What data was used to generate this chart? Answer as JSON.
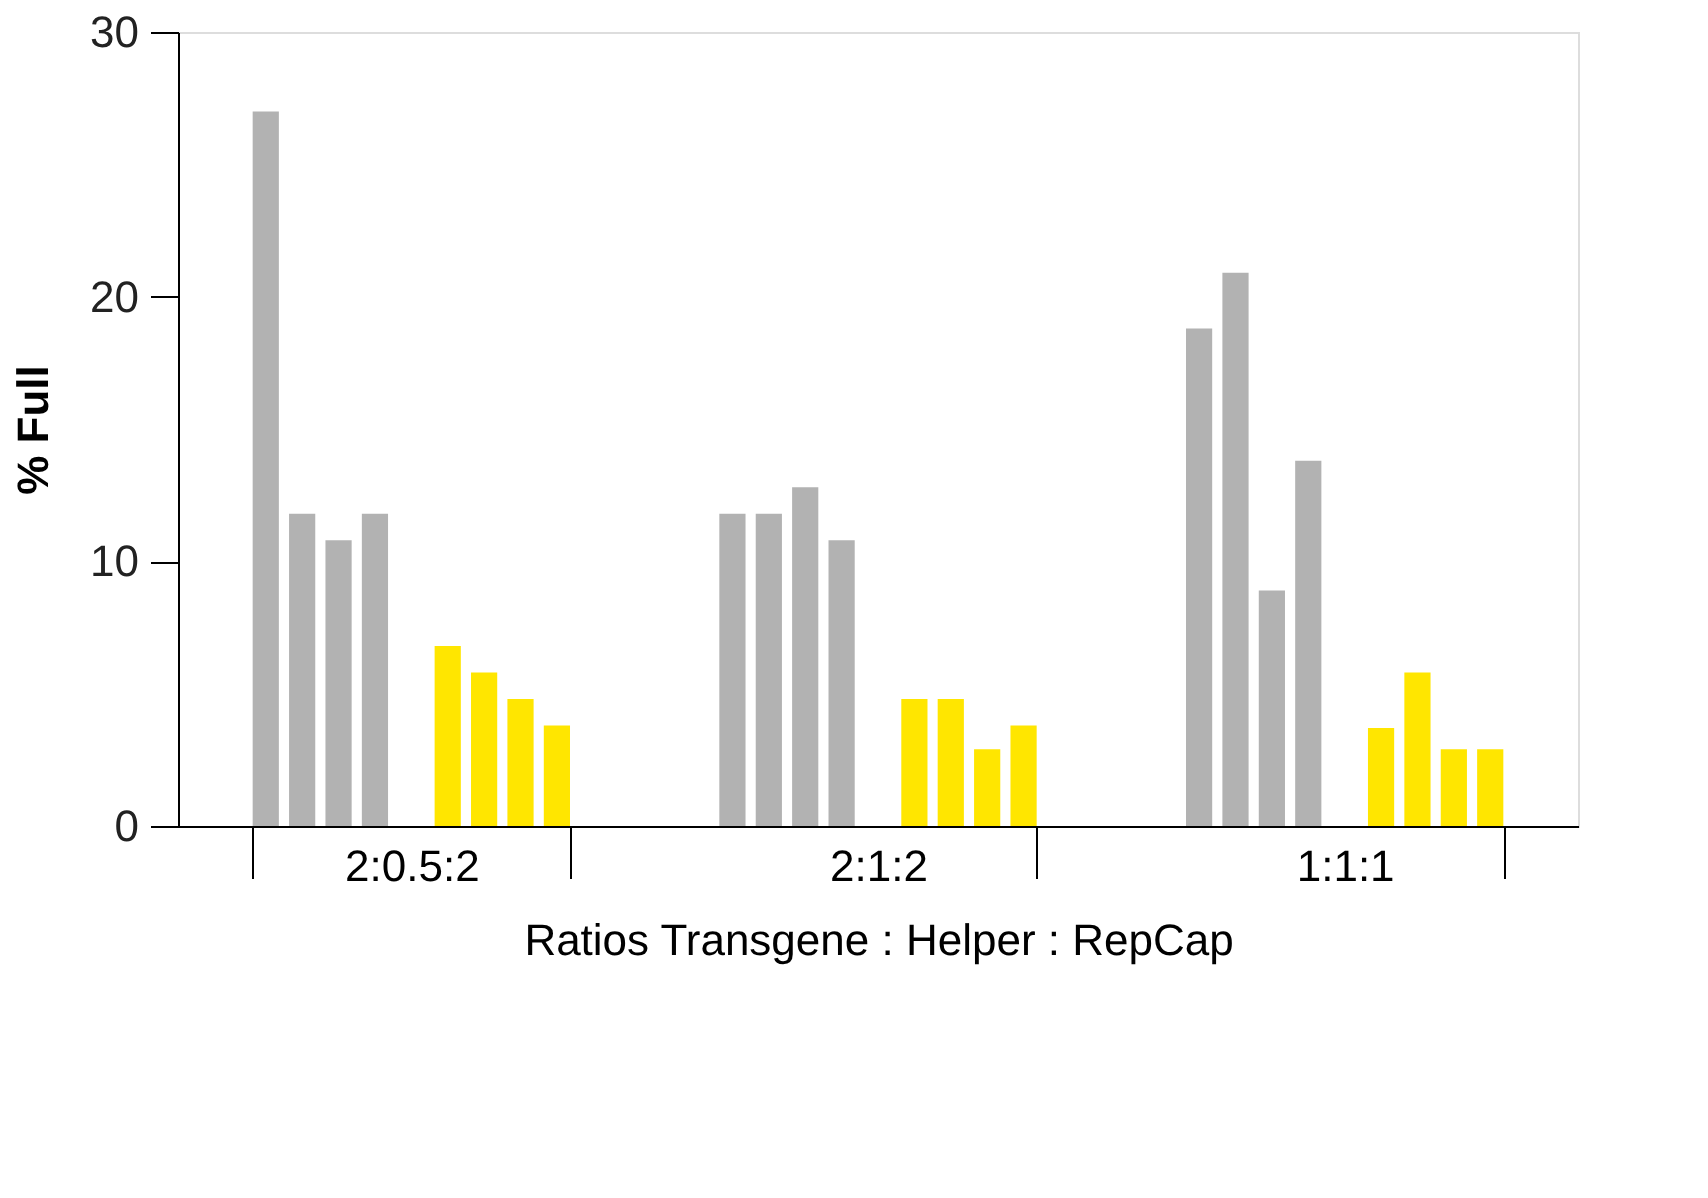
{
  "chart_data": {
    "type": "bar",
    "xlabel": "Ratios Transgene : Helper : RepCap",
    "ylabel": "% Full",
    "categories": [
      "2:0.5:2",
      "2:1:2",
      "1:1:1"
    ],
    "series": [
      {
        "color": "#b2b2b2",
        "values": [
          27,
          11.8,
          18.8
        ]
      },
      {
        "color": "#b2b2b2",
        "values": [
          11.8,
          11.8,
          20.9
        ]
      },
      {
        "color": "#b2b2b2",
        "values": [
          10.8,
          12.8,
          8.9
        ]
      },
      {
        "color": "#b2b2b2",
        "values": [
          11.8,
          10.8,
          13.8
        ]
      },
      {
        "color": "#ffe600",
        "values": [
          6.8,
          4.8,
          3.7
        ]
      },
      {
        "color": "#ffe600",
        "values": [
          5.8,
          4.8,
          5.8
        ]
      },
      {
        "color": "#ffe600",
        "values": [
          4.8,
          2.9,
          2.9
        ]
      },
      {
        "color": "#ffe600",
        "values": [
          3.8,
          3.8,
          2.9
        ]
      }
    ],
    "ylim": [
      0,
      30
    ],
    "yticks": [
      0,
      10,
      20,
      30
    ],
    "grid": false,
    "legend": false
  }
}
